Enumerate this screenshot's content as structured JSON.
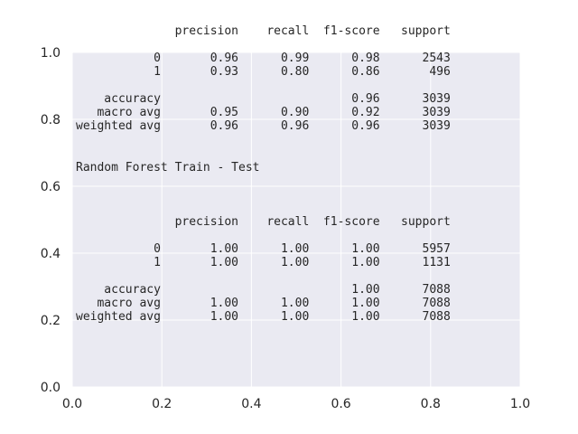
{
  "chart_data": {
    "type": "table",
    "xlim": [
      0.0,
      1.0
    ],
    "ylim": [
      0.0,
      1.0
    ],
    "x_ticks": [
      "0.0",
      "0.2",
      "0.4",
      "0.6",
      "0.8",
      "1.0"
    ],
    "y_ticks": [
      "0.0",
      "0.2",
      "0.4",
      "0.6",
      "0.8",
      "1.0"
    ],
    "grid": true,
    "text_lines": [
      "              precision    recall  f1-score   support",
      "",
      "           0       0.96      0.99      0.98      2543",
      "           1       0.93      0.80      0.86       496",
      "",
      "    accuracy                           0.96      3039",
      "   macro avg       0.95      0.90      0.92      3039",
      "weighted avg       0.96      0.96      0.96      3039",
      "",
      "",
      "Random Forest Train - Test",
      "",
      "",
      "",
      "              precision    recall  f1-score   support",
      "",
      "           0       1.00      1.00      1.00      5957",
      "           1       1.00      1.00      1.00      1131",
      "",
      "    accuracy                           1.00      7088",
      "   macro avg       1.00      1.00      1.00      7088",
      "weighted avg       1.00      1.00      1.00      7088"
    ]
  }
}
